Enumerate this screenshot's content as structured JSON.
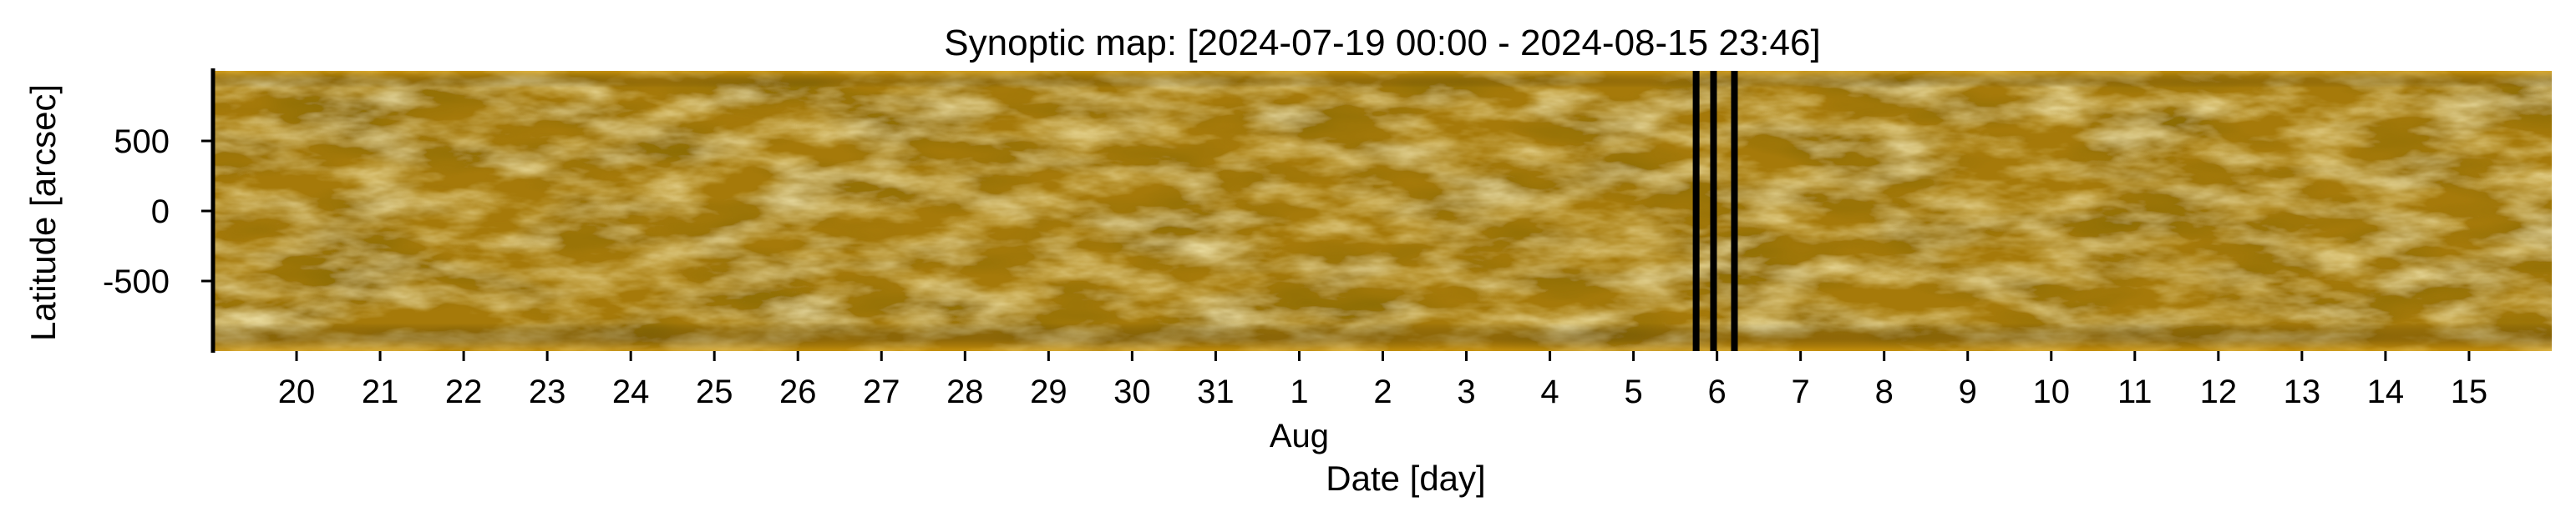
{
  "chart_data": {
    "type": "heatmap",
    "title": "Synoptic map: [2024-07-19 00:00 - 2024-08-15 23:46]",
    "xlabel": "Date [day]",
    "ylabel": "Latitude [arcsec]",
    "x_range": [
      "2024-07-19 00:00",
      "2024-08-15 23:46"
    ],
    "ylim": [
      -1000,
      1000
    ],
    "y_ticks": [
      500,
      0,
      -500
    ],
    "y_tick_labels": [
      "500",
      "0",
      "-500"
    ],
    "x_ticks": [
      "2024-07-20",
      "2024-07-21",
      "2024-07-22",
      "2024-07-23",
      "2024-07-24",
      "2024-07-25",
      "2024-07-26",
      "2024-07-27",
      "2024-07-28",
      "2024-07-29",
      "2024-07-30",
      "2024-07-31",
      "2024-08-01",
      "2024-08-02",
      "2024-08-03",
      "2024-08-04",
      "2024-08-05",
      "2024-08-06",
      "2024-08-07",
      "2024-08-08",
      "2024-08-09",
      "2024-08-10",
      "2024-08-11",
      "2024-08-12",
      "2024-08-13",
      "2024-08-14",
      "2024-08-15"
    ],
    "x_tick_labels": [
      "20",
      "21",
      "22",
      "23",
      "24",
      "25",
      "26",
      "27",
      "28",
      "29",
      "30",
      "31",
      "1",
      "2",
      "3",
      "4",
      "5",
      "6",
      "7",
      "8",
      "9",
      "10",
      "11",
      "12",
      "13",
      "14",
      "15"
    ],
    "x_month_label": "Aug",
    "data_gaps": [
      "2024-08-05 18:00",
      "2024-08-05 23:00",
      "2024-08-06 05:00"
    ],
    "colormap": "sdoaia171",
    "colors": {
      "dark": "#5a3d05",
      "mid": "#a67a0a",
      "bright": "#e6b020",
      "highlight": "#fff0b0",
      "gap": "#000000"
    },
    "grid": false
  }
}
